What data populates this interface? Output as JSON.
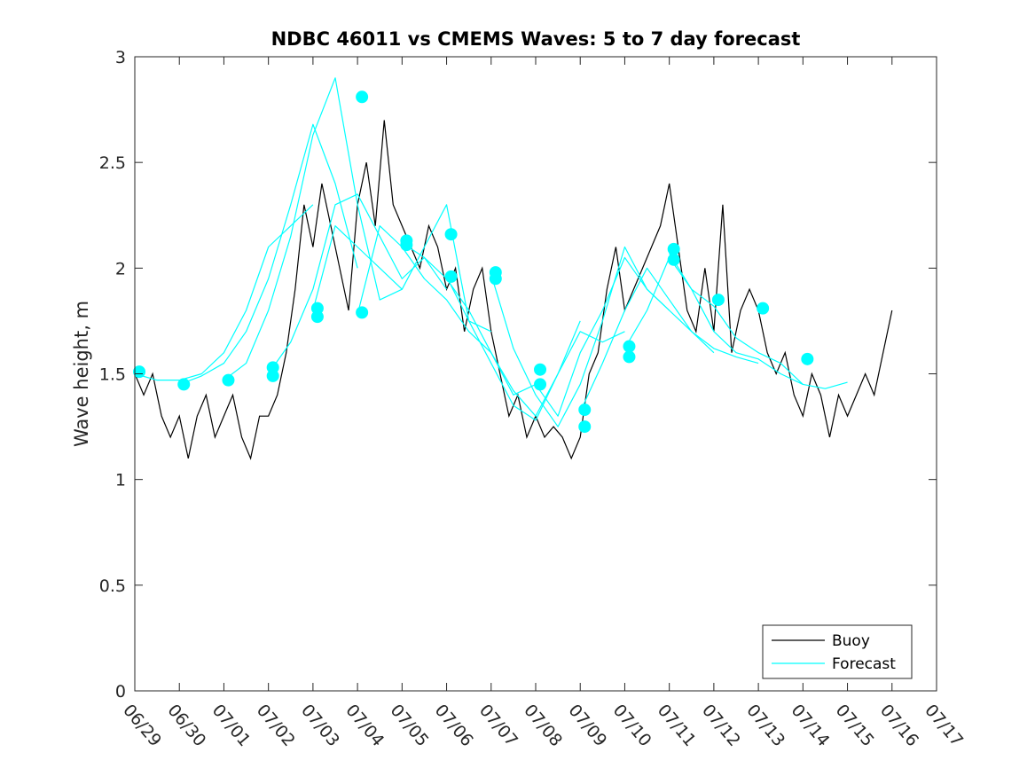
{
  "chart_data": {
    "type": "line",
    "title": "NDBC 46011 vs CMEMS Waves: 5 to 7 day forecast",
    "xlabel": "",
    "ylabel": "Wave height, m",
    "xlim": [
      "06/29",
      "07/17"
    ],
    "ylim": [
      0,
      3
    ],
    "xticks": [
      "06/29",
      "06/30",
      "07/01",
      "07/02",
      "07/03",
      "07/04",
      "07/05",
      "07/06",
      "07/07",
      "07/08",
      "07/09",
      "07/10",
      "07/11",
      "07/12",
      "07/13",
      "07/14",
      "07/15",
      "07/16",
      "07/17"
    ],
    "yticks": [
      "0",
      "0.5",
      "1",
      "1.5",
      "2",
      "2.5",
      "3"
    ],
    "grid": false,
    "legend_position": "bottom-right",
    "legend": [
      "Buoy",
      "Forecast"
    ],
    "colors": {
      "buoy": "#000000",
      "forecast": "#00ffff",
      "axis": "#262626"
    },
    "series": [
      {
        "name": "Buoy",
        "x": [
          0.0,
          0.2,
          0.4,
          0.6,
          0.8,
          1.0,
          1.2,
          1.4,
          1.6,
          1.8,
          2.0,
          2.2,
          2.4,
          2.6,
          2.8,
          3.0,
          3.2,
          3.4,
          3.6,
          3.8,
          4.0,
          4.2,
          4.4,
          4.6,
          4.8,
          5.0,
          5.2,
          5.4,
          5.6,
          5.8,
          6.0,
          6.2,
          6.4,
          6.6,
          6.8,
          7.0,
          7.2,
          7.4,
          7.6,
          7.8,
          8.0,
          8.2,
          8.4,
          8.6,
          8.8,
          9.0,
          9.2,
          9.4,
          9.6,
          9.8,
          10.0,
          10.2,
          10.4,
          10.6,
          10.8,
          11.0,
          11.2,
          11.4,
          11.6,
          11.8,
          12.0,
          12.2,
          12.4,
          12.6,
          12.8,
          13.0,
          13.2,
          13.4,
          13.6,
          13.8,
          14.0,
          14.2,
          14.4,
          14.6,
          14.8,
          15.0,
          15.2,
          15.4,
          15.6,
          15.8,
          16.0,
          16.2,
          16.4,
          16.6,
          16.8,
          17.0
        ],
        "values": [
          1.5,
          1.4,
          1.5,
          1.3,
          1.2,
          1.3,
          1.1,
          1.3,
          1.4,
          1.2,
          1.3,
          1.4,
          1.2,
          1.1,
          1.3,
          1.3,
          1.4,
          1.6,
          1.9,
          2.3,
          2.1,
          2.4,
          2.2,
          2.0,
          1.8,
          2.3,
          2.5,
          2.2,
          2.7,
          2.3,
          2.2,
          2.1,
          2.0,
          2.2,
          2.1,
          1.9,
          2.0,
          1.7,
          1.9,
          2.0,
          1.7,
          1.5,
          1.3,
          1.4,
          1.2,
          1.3,
          1.2,
          1.25,
          1.2,
          1.1,
          1.2,
          1.5,
          1.6,
          1.9,
          2.1,
          1.8,
          1.9,
          2.0,
          2.1,
          2.2,
          2.4,
          2.1,
          1.8,
          1.7,
          2.0,
          1.7,
          2.3,
          1.6,
          1.8,
          1.9,
          1.8,
          1.6,
          1.5,
          1.6,
          1.4,
          1.3,
          1.5,
          1.4,
          1.2,
          1.4,
          1.3,
          1.4,
          1.5,
          1.4,
          1.6,
          1.8
        ]
      },
      {
        "name": "Forecast",
        "runs": [
          {
            "x": [
              0.0,
              0.5,
              1.0,
              1.5,
              2.0,
              2.5,
              3.0,
              3.5,
              4.0
            ],
            "values": [
              1.5,
              1.47,
              1.47,
              1.5,
              1.6,
              1.8,
              2.1,
              2.2,
              2.3
            ]
          },
          {
            "x": [
              1.0,
              1.5,
              2.0,
              2.5,
              3.0,
              3.5,
              4.0,
              4.5,
              5.0
            ],
            "values": [
              1.45,
              1.49,
              1.55,
              1.7,
              1.95,
              2.3,
              2.68,
              2.4,
              2.0
            ]
          },
          {
            "x": [
              2.0,
              2.5,
              3.0,
              3.5,
              4.0,
              4.5,
              5.0,
              5.5,
              6.0
            ],
            "values": [
              1.47,
              1.55,
              1.8,
              2.15,
              2.63,
              2.9,
              2.3,
              1.85,
              1.9
            ]
          },
          {
            "x": [
              3.0,
              3.5,
              4.0,
              4.5,
              5.0,
              5.5,
              6.0,
              6.5,
              7.0
            ],
            "values": [
              1.5,
              1.65,
              1.9,
              2.3,
              2.35,
              2.15,
              1.95,
              2.05,
              1.9
            ]
          },
          {
            "x": [
              4.0,
              4.5,
              5.0,
              5.5,
              6.0,
              6.5,
              7.0,
              7.5,
              8.0
            ],
            "values": [
              1.8,
              2.2,
              2.1,
              2.0,
              1.9,
              2.1,
              2.3,
              1.75,
              1.7
            ]
          },
          {
            "x": [
              5.0,
              5.5,
              6.0,
              6.5,
              7.0,
              7.5,
              8.0,
              8.5,
              9.0
            ],
            "values": [
              1.78,
              2.2,
              2.1,
              1.95,
              1.85,
              1.7,
              1.6,
              1.4,
              1.45
            ]
          },
          {
            "x": [
              6.0,
              6.5,
              7.0,
              7.5,
              8.0,
              8.5,
              9.0,
              9.5,
              10.0
            ],
            "values": [
              2.12,
              2.05,
              1.95,
              1.8,
              1.6,
              1.42,
              1.3,
              1.5,
              1.75
            ]
          },
          {
            "x": [
              7.0,
              7.5,
              8.0,
              8.5,
              9.0,
              9.5,
              10.0,
              10.5,
              11.0
            ],
            "values": [
              1.96,
              1.75,
              1.55,
              1.35,
              1.28,
              1.5,
              1.7,
              1.65,
              1.7
            ]
          },
          {
            "x": [
              8.0,
              8.5,
              9.0,
              9.5,
              10.0,
              10.5,
              11.0,
              11.5,
              12.0
            ],
            "values": [
              1.97,
              1.62,
              1.4,
              1.25,
              1.45,
              1.75,
              2.1,
              1.9,
              1.8
            ]
          },
          {
            "x": [
              9.0,
              9.5,
              10.0,
              10.5,
              11.0,
              11.5,
              12.0,
              12.5,
              13.0
            ],
            "values": [
              1.45,
              1.3,
              1.6,
              1.8,
              2.05,
              1.9,
              1.8,
              1.7,
              1.6
            ]
          },
          {
            "x": [
              10.0,
              10.5,
              11.0,
              11.5,
              12.0,
              12.5,
              13.0,
              13.5,
              14.0
            ],
            "values": [
              1.32,
              1.55,
              1.8,
              2.0,
              1.85,
              1.7,
              1.62,
              1.58,
              1.55
            ]
          },
          {
            "x": [
              11.0,
              11.5,
              12.0,
              12.5,
              13.0,
              13.5,
              14.0,
              14.5,
              15.0
            ],
            "values": [
              1.62,
              1.8,
              2.05,
              1.9,
              1.7,
              1.6,
              1.57,
              1.5,
              1.45
            ]
          },
          {
            "x": [
              12.0,
              12.5,
              13.0,
              13.5,
              14.0,
              14.5,
              15.0,
              15.5,
              16.0
            ],
            "values": [
              2.07,
              1.9,
              1.82,
              1.67,
              1.6,
              1.55,
              1.45,
              1.43,
              1.46
            ]
          }
        ],
        "markers": {
          "x": [
            0.1,
            1.1,
            2.1,
            3.1,
            3.1,
            4.1,
            4.1,
            5.1,
            5.1,
            6.1,
            6.1,
            7.1,
            7.1,
            8.1,
            8.1,
            9.1,
            9.1,
            10.1,
            10.1,
            11.1,
            11.1,
            12.1,
            12.1,
            13.1,
            14.1,
            15.1
          ],
          "values": [
            1.51,
            1.45,
            1.47,
            1.53,
            1.49,
            1.81,
            1.77,
            2.81,
            1.79,
            2.13,
            2.11,
            2.16,
            1.96,
            1.98,
            1.95,
            1.52,
            1.45,
            1.33,
            1.25,
            1.63,
            1.58,
            2.09,
            2.04,
            1.85,
            1.81,
            1.57
          ]
        }
      }
    ]
  }
}
